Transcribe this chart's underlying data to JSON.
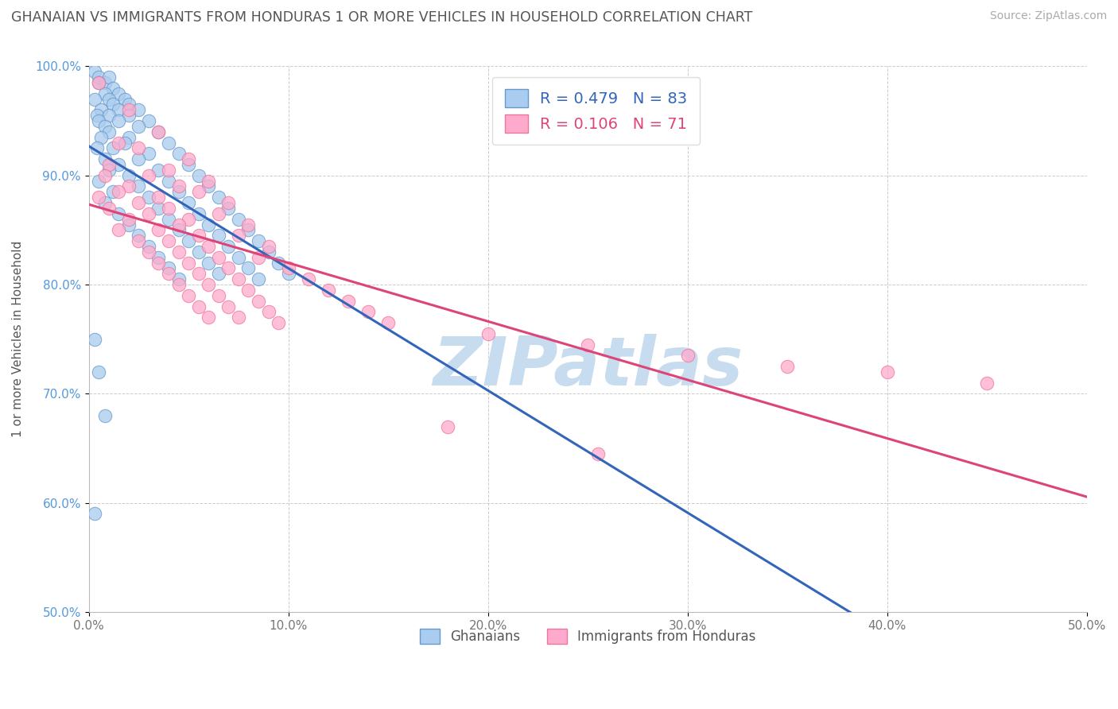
{
  "title": "GHANAIAN VS IMMIGRANTS FROM HONDURAS 1 OR MORE VEHICLES IN HOUSEHOLD CORRELATION CHART",
  "source_text": "Source: ZipAtlas.com",
  "ylabel": "1 or more Vehicles in Household",
  "xlim": [
    0.0,
    50.0
  ],
  "ylim": [
    50.0,
    100.0
  ],
  "xticks": [
    0.0,
    10.0,
    20.0,
    30.0,
    40.0,
    50.0
  ],
  "yticks": [
    50.0,
    60.0,
    70.0,
    80.0,
    90.0,
    100.0
  ],
  "xtick_labels": [
    "0.0%",
    "10.0%",
    "20.0%",
    "30.0%",
    "40.0%",
    "50.0%"
  ],
  "ytick_labels": [
    "50.0%",
    "60.0%",
    "70.0%",
    "80.0%",
    "90.0%",
    "100.0%"
  ],
  "blue_fill_color": "#AACCEE",
  "blue_edge_color": "#6699CC",
  "pink_fill_color": "#FFAACC",
  "pink_edge_color": "#EE7799",
  "blue_line_color": "#3366BB",
  "pink_line_color": "#DD4477",
  "legend_label_blue": "Ghanaians",
  "legend_label_pink": "Immigrants from Honduras",
  "R_blue": "0.479",
  "N_blue": "83",
  "R_pink": "0.106",
  "N_pink": "71",
  "title_color": "#555555",
  "watermark_color": "#C8DCF0",
  "blue_scatter": [
    [
      0.3,
      99.5
    ],
    [
      0.5,
      99.0
    ],
    [
      0.8,
      98.5
    ],
    [
      1.0,
      99.0
    ],
    [
      1.2,
      98.0
    ],
    [
      0.5,
      98.5
    ],
    [
      0.8,
      97.5
    ],
    [
      1.5,
      97.5
    ],
    [
      1.0,
      97.0
    ],
    [
      1.8,
      97.0
    ],
    [
      0.3,
      97.0
    ],
    [
      2.0,
      96.5
    ],
    [
      1.2,
      96.5
    ],
    [
      0.6,
      96.0
    ],
    [
      2.5,
      96.0
    ],
    [
      1.5,
      96.0
    ],
    [
      0.4,
      95.5
    ],
    [
      1.0,
      95.5
    ],
    [
      2.0,
      95.5
    ],
    [
      3.0,
      95.0
    ],
    [
      0.5,
      95.0
    ],
    [
      1.5,
      95.0
    ],
    [
      0.8,
      94.5
    ],
    [
      2.5,
      94.5
    ],
    [
      1.0,
      94.0
    ],
    [
      3.5,
      94.0
    ],
    [
      0.6,
      93.5
    ],
    [
      2.0,
      93.5
    ],
    [
      1.8,
      93.0
    ],
    [
      4.0,
      93.0
    ],
    [
      0.4,
      92.5
    ],
    [
      1.2,
      92.5
    ],
    [
      3.0,
      92.0
    ],
    [
      4.5,
      92.0
    ],
    [
      0.8,
      91.5
    ],
    [
      2.5,
      91.5
    ],
    [
      1.5,
      91.0
    ],
    [
      5.0,
      91.0
    ],
    [
      1.0,
      90.5
    ],
    [
      3.5,
      90.5
    ],
    [
      2.0,
      90.0
    ],
    [
      5.5,
      90.0
    ],
    [
      0.5,
      89.5
    ],
    [
      4.0,
      89.5
    ],
    [
      2.5,
      89.0
    ],
    [
      6.0,
      89.0
    ],
    [
      1.2,
      88.5
    ],
    [
      4.5,
      88.5
    ],
    [
      3.0,
      88.0
    ],
    [
      6.5,
      88.0
    ],
    [
      0.8,
      87.5
    ],
    [
      5.0,
      87.5
    ],
    [
      3.5,
      87.0
    ],
    [
      7.0,
      87.0
    ],
    [
      1.5,
      86.5
    ],
    [
      5.5,
      86.5
    ],
    [
      4.0,
      86.0
    ],
    [
      7.5,
      86.0
    ],
    [
      2.0,
      85.5
    ],
    [
      6.0,
      85.5
    ],
    [
      4.5,
      85.0
    ],
    [
      8.0,
      85.0
    ],
    [
      2.5,
      84.5
    ],
    [
      6.5,
      84.5
    ],
    [
      5.0,
      84.0
    ],
    [
      8.5,
      84.0
    ],
    [
      3.0,
      83.5
    ],
    [
      7.0,
      83.5
    ],
    [
      5.5,
      83.0
    ],
    [
      9.0,
      83.0
    ],
    [
      3.5,
      82.5
    ],
    [
      7.5,
      82.5
    ],
    [
      6.0,
      82.0
    ],
    [
      9.5,
      82.0
    ],
    [
      4.0,
      81.5
    ],
    [
      8.0,
      81.5
    ],
    [
      6.5,
      81.0
    ],
    [
      10.0,
      81.0
    ],
    [
      4.5,
      80.5
    ],
    [
      8.5,
      80.5
    ],
    [
      0.3,
      75.0
    ],
    [
      0.5,
      72.0
    ],
    [
      0.8,
      68.0
    ],
    [
      0.3,
      59.0
    ]
  ],
  "pink_scatter": [
    [
      0.5,
      98.5
    ],
    [
      2.0,
      96.0
    ],
    [
      3.5,
      94.0
    ],
    [
      1.5,
      93.0
    ],
    [
      2.5,
      92.5
    ],
    [
      5.0,
      91.5
    ],
    [
      1.0,
      91.0
    ],
    [
      4.0,
      90.5
    ],
    [
      0.8,
      90.0
    ],
    [
      3.0,
      90.0
    ],
    [
      6.0,
      89.5
    ],
    [
      2.0,
      89.0
    ],
    [
      4.5,
      89.0
    ],
    [
      1.5,
      88.5
    ],
    [
      5.5,
      88.5
    ],
    [
      0.5,
      88.0
    ],
    [
      3.5,
      88.0
    ],
    [
      2.5,
      87.5
    ],
    [
      7.0,
      87.5
    ],
    [
      1.0,
      87.0
    ],
    [
      4.0,
      87.0
    ],
    [
      3.0,
      86.5
    ],
    [
      6.5,
      86.5
    ],
    [
      2.0,
      86.0
    ],
    [
      5.0,
      86.0
    ],
    [
      4.5,
      85.5
    ],
    [
      8.0,
      85.5
    ],
    [
      1.5,
      85.0
    ],
    [
      3.5,
      85.0
    ],
    [
      5.5,
      84.5
    ],
    [
      7.5,
      84.5
    ],
    [
      2.5,
      84.0
    ],
    [
      4.0,
      84.0
    ],
    [
      6.0,
      83.5
    ],
    [
      9.0,
      83.5
    ],
    [
      3.0,
      83.0
    ],
    [
      4.5,
      83.0
    ],
    [
      6.5,
      82.5
    ],
    [
      8.5,
      82.5
    ],
    [
      3.5,
      82.0
    ],
    [
      5.0,
      82.0
    ],
    [
      7.0,
      81.5
    ],
    [
      10.0,
      81.5
    ],
    [
      4.0,
      81.0
    ],
    [
      5.5,
      81.0
    ],
    [
      7.5,
      80.5
    ],
    [
      11.0,
      80.5
    ],
    [
      4.5,
      80.0
    ],
    [
      6.0,
      80.0
    ],
    [
      8.0,
      79.5
    ],
    [
      12.0,
      79.5
    ],
    [
      5.0,
      79.0
    ],
    [
      6.5,
      79.0
    ],
    [
      8.5,
      78.5
    ],
    [
      13.0,
      78.5
    ],
    [
      5.5,
      78.0
    ],
    [
      7.0,
      78.0
    ],
    [
      9.0,
      77.5
    ],
    [
      14.0,
      77.5
    ],
    [
      6.0,
      77.0
    ],
    [
      7.5,
      77.0
    ],
    [
      9.5,
      76.5
    ],
    [
      15.0,
      76.5
    ],
    [
      20.0,
      75.5
    ],
    [
      25.0,
      74.5
    ],
    [
      30.0,
      73.5
    ],
    [
      35.0,
      72.5
    ],
    [
      40.0,
      72.0
    ],
    [
      45.0,
      71.0
    ],
    [
      18.0,
      67.0
    ],
    [
      25.5,
      64.5
    ]
  ]
}
